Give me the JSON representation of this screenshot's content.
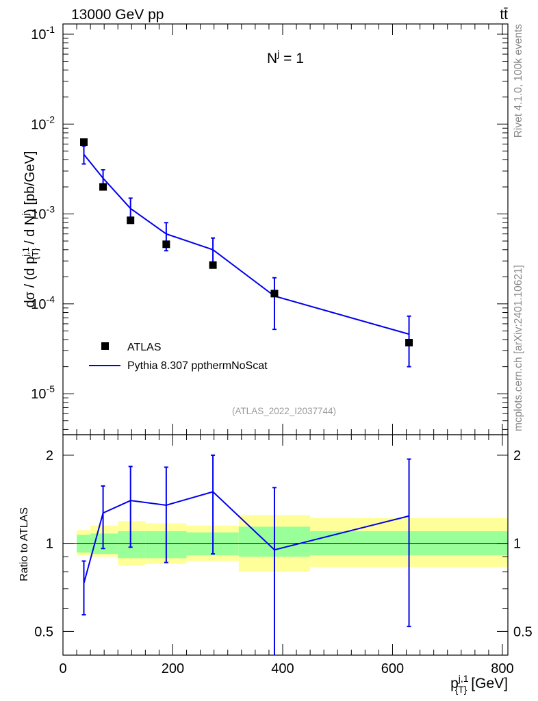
{
  "header": {
    "left_label": "13000 GeV pp",
    "right_label": "tt̄"
  },
  "side_labels": {
    "rivet": "Rivet 4.1.0,  100k events",
    "mcplots": "mcplots.cern.ch [arXiv:2401.10621]"
  },
  "colors": {
    "mc_line": "#0000ee",
    "data_marker": "#000000",
    "band_inner": "#99ff99",
    "band_outer": "#ffff99"
  },
  "chart_data": [
    {
      "type": "scatter",
      "scale": "log",
      "annotation": "N^j = 1",
      "ref_label": "(ATLAS_2022_I2037744)",
      "ylabel": "dσ / (d p_{T}^{j,1} / d N^j) [pb/GeV]",
      "xlim": [
        0,
        810
      ],
      "ylim": [
        3.5e-06,
        0.13
      ],
      "ytick_values": [
        1e-05,
        0.0001,
        0.001,
        0.01,
        0.1
      ],
      "ytick_labels": [
        "10^-5",
        "10^-4",
        "10^-3",
        "10^-2",
        "10^-1"
      ],
      "legend": [
        "ATLAS",
        "Pythia 8.307 ppthermNoScat"
      ],
      "series": [
        {
          "name": "ATLAS",
          "x": [
            38,
            73,
            123,
            188,
            273,
            385,
            630
          ],
          "bins": [
            [
              25,
              50
            ],
            [
              50,
              100
            ],
            [
              100,
              150
            ],
            [
              150,
              225
            ],
            [
              225,
              320
            ],
            [
              320,
              450
            ],
            [
              450,
              810
            ]
          ],
          "y": [
            0.0063,
            0.002,
            0.00085,
            0.00046,
            0.00027,
            0.00013,
            3.7e-05
          ]
        },
        {
          "name": "Pythia 8.307 ppthermNoScat",
          "x": [
            38,
            73,
            123,
            188,
            273,
            385,
            630
          ],
          "y": [
            0.0046,
            0.0025,
            0.00115,
            0.0006,
            0.0004,
            0.000122,
            4.6e-05
          ],
          "yerr_lo": [
            0.0036,
            0.0019,
            0.00085,
            0.00039,
            0.00028,
            5.2e-05,
            2e-05
          ],
          "yerr_hi": [
            0.0057,
            0.0031,
            0.0015,
            0.0008,
            0.00054,
            0.000195,
            7.3e-05
          ]
        }
      ]
    },
    {
      "type": "line",
      "scale": "log",
      "ylabel": "Ratio to ATLAS",
      "xlabel": "p_{T}^{j,1} [GeV]",
      "xlim": [
        0,
        810
      ],
      "ylim": [
        0.415,
        2.35
      ],
      "xtick_values": [
        0,
        200,
        400,
        600,
        800
      ],
      "xtick_labels": [
        "0",
        "200",
        "400",
        "600",
        "800"
      ],
      "ytick_values": [
        0.5,
        1,
        2
      ],
      "ytick_labels": [
        "0.5",
        "1",
        "2"
      ],
      "bins": [
        [
          25,
          50
        ],
        [
          50,
          100
        ],
        [
          100,
          150
        ],
        [
          150,
          225
        ],
        [
          225,
          320
        ],
        [
          320,
          450
        ],
        [
          450,
          810
        ]
      ],
      "band_inner": [
        [
          0.93,
          1.07
        ],
        [
          0.92,
          1.08
        ],
        [
          0.89,
          1.1
        ],
        [
          0.89,
          1.1
        ],
        [
          0.91,
          1.09
        ],
        [
          0.9,
          1.14
        ],
        [
          0.91,
          1.1
        ]
      ],
      "band_outer": [
        [
          0.91,
          1.11
        ],
        [
          0.9,
          1.15
        ],
        [
          0.84,
          1.19
        ],
        [
          0.85,
          1.17
        ],
        [
          0.87,
          1.15
        ],
        [
          0.8,
          1.25
        ],
        [
          0.83,
          1.22
        ]
      ],
      "series": [
        {
          "name": "Pythia 8.307 ppthermNoScat / ATLAS",
          "x": [
            38,
            73,
            123,
            188,
            273,
            385,
            630
          ],
          "y": [
            0.73,
            1.27,
            1.4,
            1.35,
            1.5,
            0.95,
            1.24
          ],
          "yerr_lo": [
            0.57,
            0.96,
            0.97,
            0.86,
            0.92,
            0.4,
            0.52
          ],
          "yerr_hi": [
            0.87,
            1.57,
            1.83,
            1.82,
            2.0,
            1.55,
            1.94
          ]
        }
      ]
    }
  ]
}
